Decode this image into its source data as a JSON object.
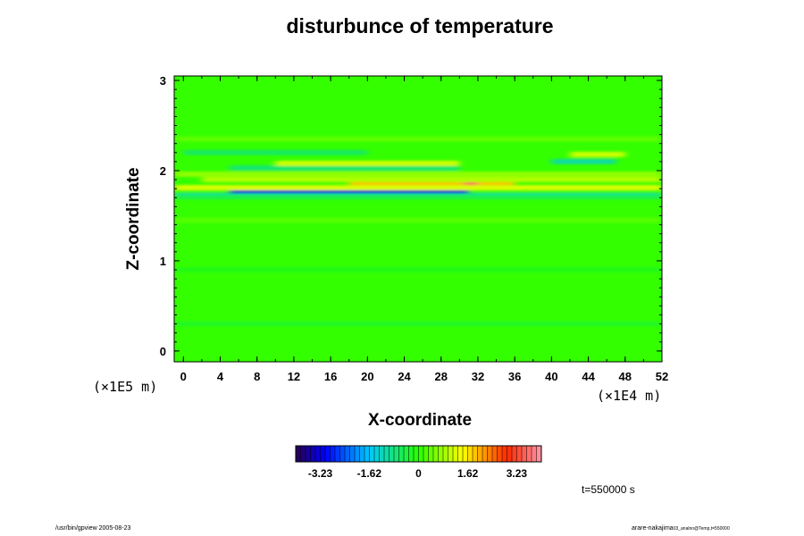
{
  "chart_data": {
    "type": "heatmap",
    "title": "disturbunce of temperature",
    "xlabel": "X-coordinate",
    "ylabel": "Z-coordinate",
    "x_unit": "(×1E4 m)",
    "y_unit": "(×1E5 m)",
    "xlim": [
      -1,
      52
    ],
    "ylim": [
      -0.12,
      3.05
    ],
    "x_ticks": [
      "0",
      "4",
      "8",
      "12",
      "16",
      "20",
      "24",
      "28",
      "32",
      "36",
      "40",
      "44",
      "48",
      "52"
    ],
    "y_ticks": [
      "0",
      "1",
      "2",
      "3"
    ],
    "colorbar": {
      "range": [
        -4.04,
        4.04
      ],
      "tick_values": [
        -3.23,
        -1.62,
        0,
        1.62,
        3.23
      ],
      "tick_labels": [
        "-3.23",
        "-1.62",
        "0",
        "1.62",
        "3.23"
      ]
    },
    "background_value": 0.08,
    "features": [
      {
        "z": 1.73,
        "x_range": [
          -1,
          52
        ],
        "value": -1.6
      },
      {
        "z": 1.71,
        "x_range": [
          -1,
          52
        ],
        "value": -0.5
      },
      {
        "z": 1.77,
        "x_range": [
          5,
          31
        ],
        "value": -3.3
      },
      {
        "z": 1.81,
        "x_range": [
          -1,
          52
        ],
        "value": 1.2
      },
      {
        "z": 1.86,
        "x_range": [
          18,
          36
        ],
        "value": 1.9
      },
      {
        "z": 1.86,
        "x_range": [
          30.5,
          32
        ],
        "value": 3.5
      },
      {
        "z": 1.9,
        "x_range": [
          2,
          52
        ],
        "value": 0.9
      },
      {
        "z": 1.96,
        "x_range": [
          -1,
          52
        ],
        "value": 0.7
      },
      {
        "z": 2.03,
        "x_range": [
          5,
          30
        ],
        "value": -0.7
      },
      {
        "z": 2.08,
        "x_range": [
          10,
          30
        ],
        "value": 1.1
      },
      {
        "z": 2.1,
        "x_range": [
          40,
          47
        ],
        "value": -1.0
      },
      {
        "z": 2.18,
        "x_range": [
          42,
          48
        ],
        "value": 1.1
      },
      {
        "z": 2.2,
        "x_range": [
          0,
          20
        ],
        "value": -0.6
      },
      {
        "z": 2.35,
        "x_range": [
          -1,
          52
        ],
        "value": 0.35
      },
      {
        "z": 1.45,
        "x_range": [
          -1,
          52
        ],
        "value": 0.3
      },
      {
        "z": 0.9,
        "x_range": [
          -1,
          52
        ],
        "value": -0.15
      },
      {
        "z": 0.3,
        "x_range": [
          -1,
          52
        ],
        "value": -0.2
      }
    ],
    "time": "t=550000 s"
  },
  "footer": {
    "left": "/usr/bin/gpview 2005-08-23",
    "right_main": "arare-nakajima",
    "right_sub": "03_analno@Temp,t=550000"
  },
  "colors": {
    "background": "#ffffff",
    "field_base": "#33ff00",
    "axis": "#000000"
  }
}
